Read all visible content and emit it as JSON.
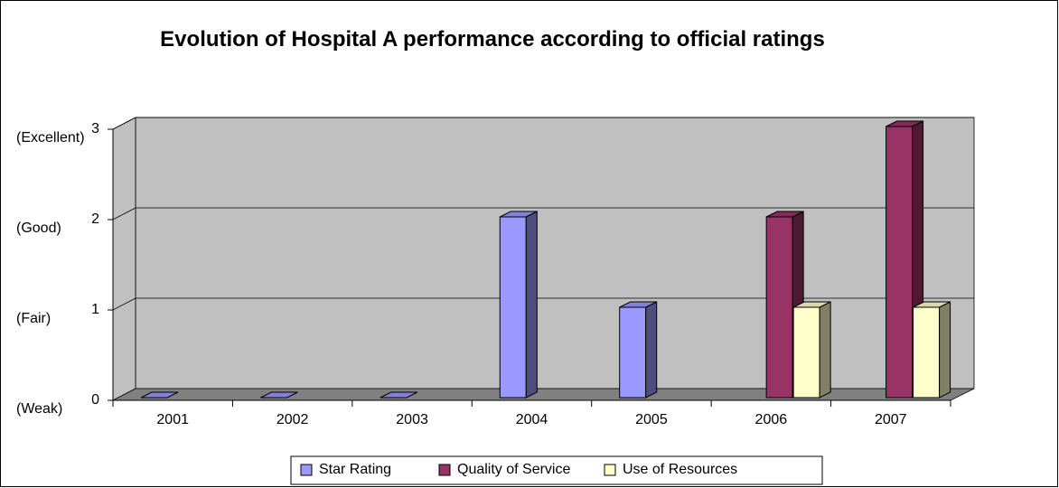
{
  "chart_data": {
    "type": "bar3d",
    "title": "Evolution of Hospital A performance according to official ratings",
    "categories": [
      "2001",
      "2002",
      "2003",
      "2004",
      "2005",
      "2006",
      "2007"
    ],
    "series": [
      {
        "name": "Star Rating",
        "color": "#9999ff",
        "values": [
          0,
          0,
          0,
          2,
          1,
          null,
          null
        ]
      },
      {
        "name": "Quality of Service",
        "color": "#993366",
        "values": [
          null,
          null,
          null,
          null,
          null,
          2,
          3
        ]
      },
      {
        "name": "Use of Resources",
        "color": "#ffffcc",
        "values": [
          null,
          null,
          null,
          null,
          null,
          1,
          1
        ]
      }
    ],
    "ylim": [
      0,
      3
    ],
    "yticks": [
      0,
      1,
      2,
      3
    ],
    "ytick_descriptions": [
      "(Weak)",
      "(Fair)",
      "(Good)",
      "(Excellent)"
    ],
    "grid": true,
    "legend": "bottom"
  }
}
